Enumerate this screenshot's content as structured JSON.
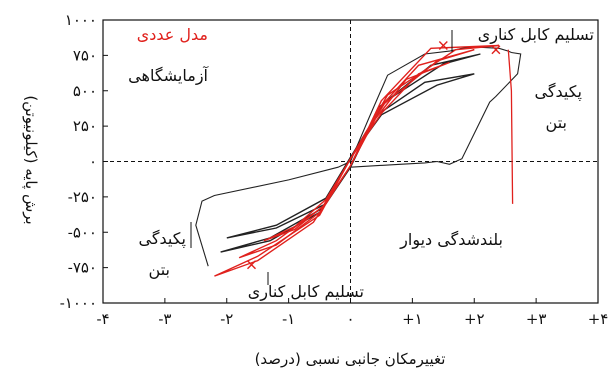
{
  "chart_data": {
    "type": "line",
    "xlabel": "تغییرمکان جانبی نسبی (درصد)",
    "ylabel": "برش پایه (کیلونیوتن)",
    "xlim": [
      -4,
      4
    ],
    "ylim": [
      -1000,
      1000
    ],
    "x_ticks": [
      -4,
      -3,
      -2,
      -1,
      0,
      1,
      2,
      3,
      4
    ],
    "x_tick_labels": [
      "-۴",
      "-۳",
      "-۲",
      "-۱",
      "۰",
      "+۱",
      "+۲",
      "+۳",
      "+۴"
    ],
    "y_ticks": [
      1000,
      750,
      500,
      250,
      0,
      -250,
      -500,
      -750,
      -1000
    ],
    "y_tick_labels": [
      "۱۰۰۰",
      "۷۵۰",
      "۵۰۰",
      "۲۵۰",
      "۰",
      "-۲۵۰",
      "-۵۰۰",
      "-۷۵۰",
      "-۱۰۰۰"
    ],
    "series": [
      {
        "name": "آزمایشگاهی",
        "color": "#222222",
        "loops": [
          [
            [
              -2.0,
              -540
            ],
            [
              -1.2,
              -470
            ],
            [
              -0.4,
              -300
            ],
            [
              0,
              -40
            ],
            [
              0.4,
              320
            ],
            [
              1.2,
              560
            ],
            [
              2.0,
              620
            ],
            [
              1.4,
              540
            ],
            [
              0.5,
              330
            ],
            [
              0,
              30
            ],
            [
              -0.4,
              -260
            ],
            [
              -1.2,
              -450
            ],
            [
              -2.0,
              -540
            ]
          ],
          [
            [
              -2.1,
              -640
            ],
            [
              -1.3,
              -560
            ],
            [
              -0.5,
              -360
            ],
            [
              0,
              -40
            ],
            [
              0.45,
              380
            ],
            [
              1.3,
              680
            ],
            [
              2.1,
              760
            ],
            [
              1.5,
              690
            ],
            [
              0.55,
              420
            ],
            [
              0,
              30
            ],
            [
              -0.45,
              -330
            ],
            [
              -1.3,
              -540
            ],
            [
              -2.1,
              -640
            ]
          ]
        ],
        "envelope": [
          [
            -2.3,
            -740
          ],
          [
            -2.5,
            -450
          ],
          [
            -2.4,
            -280
          ],
          [
            -2.2,
            -240
          ],
          [
            -1.0,
            -130
          ],
          [
            -0.2,
            -40
          ],
          [
            0,
            0
          ],
          [
            0.3,
            310
          ],
          [
            0.6,
            610
          ],
          [
            1.2,
            760
          ],
          [
            1.6,
            780
          ],
          [
            1.8,
            800
          ],
          [
            2.0,
            810
          ],
          [
            2.4,
            800
          ],
          [
            2.55,
            780
          ],
          [
            2.6,
            770
          ],
          [
            2.75,
            760
          ],
          [
            2.7,
            620
          ],
          [
            2.35,
            460
          ],
          [
            2.25,
            420
          ],
          [
            1.8,
            20
          ],
          [
            1.6,
            -20
          ],
          [
            1.4,
            0
          ],
          [
            1.2,
            -10
          ],
          [
            0.8,
            -20
          ],
          [
            0,
            -40
          ]
        ]
      },
      {
        "name": "مدل عددی",
        "color": "#e0211d",
        "loops": [
          [
            [
              -1.4,
              -560
            ],
            [
              -0.9,
              -480
            ],
            [
              -0.4,
              -300
            ],
            [
              0,
              -30
            ],
            [
              0.4,
              300
            ],
            [
              0.9,
              580
            ],
            [
              1.6,
              700
            ],
            [
              1.1,
              620
            ],
            [
              0.5,
              340
            ],
            [
              0,
              20
            ],
            [
              -0.4,
              -270
            ],
            [
              -0.9,
              -460
            ],
            [
              -1.4,
              -560
            ]
          ],
          [
            [
              -1.8,
              -680
            ],
            [
              -1.2,
              -590
            ],
            [
              -0.5,
              -360
            ],
            [
              0,
              -30
            ],
            [
              0.45,
              370
            ],
            [
              1.1,
              680
            ],
            [
              2.0,
              790
            ],
            [
              1.4,
              710
            ],
            [
              0.55,
              410
            ],
            [
              0,
              20
            ],
            [
              -0.45,
              -320
            ],
            [
              -1.2,
              -560
            ],
            [
              -1.8,
              -680
            ]
          ],
          [
            [
              -2.2,
              -810
            ],
            [
              -1.5,
              -700
            ],
            [
              -0.6,
              -430
            ],
            [
              0,
              -30
            ],
            [
              0.5,
              430
            ],
            [
              1.3,
              800
            ],
            [
              2.4,
              820
            ],
            [
              1.7,
              790
            ],
            [
              0.6,
              470
            ],
            [
              0,
              20
            ],
            [
              -0.5,
              -380
            ],
            [
              -1.5,
              -670
            ],
            [
              -2.2,
              -810
            ]
          ]
        ],
        "tail": [
          [
            2.55,
            790
          ],
          [
            2.6,
            500
          ],
          [
            2.62,
            -300
          ]
        ]
      }
    ],
    "annotations": {
      "legend_red": "مدل عددی",
      "legend_black": "آزمایشگاهی",
      "yield_top": "تسلیم کابل کناری",
      "yield_bottom": "تسلیم کابل کناری",
      "crush_right": [
        "پکیدگی",
        "بتن"
      ],
      "crush_left": [
        "پکیدگی",
        "بتن"
      ],
      "wall_uplift": "بلندشدگی دیوار"
    },
    "grid": false,
    "zero_lines": "dashed"
  }
}
